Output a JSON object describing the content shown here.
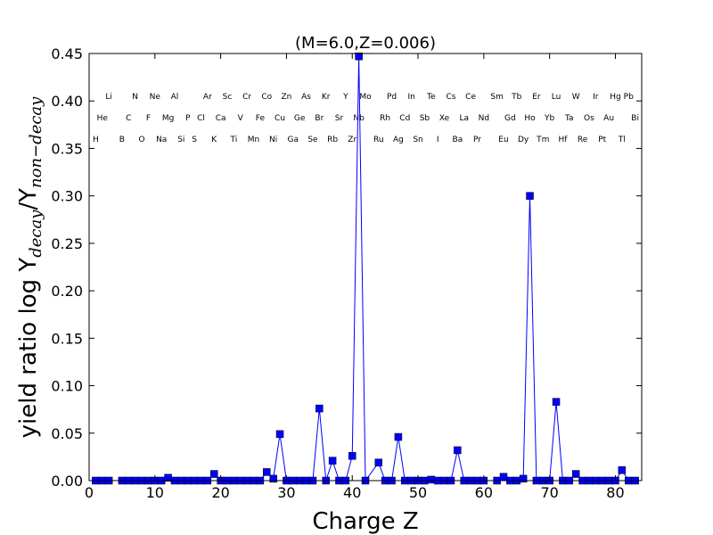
{
  "chart_data": {
    "type": "line",
    "title": "(M=6.0,Z=0.006)",
    "xlabel": "Charge Z",
    "ylabel_main": "yield ratio log Y",
    "ylabel_sub1": "decay",
    "ylabel_sep": "/Y",
    "ylabel_sub2": "non−decay",
    "xlim": [
      0,
      84
    ],
    "ylim": [
      0,
      0.45
    ],
    "xticks": [
      "0",
      "10",
      "20",
      "30",
      "40",
      "50",
      "60",
      "70",
      "80"
    ],
    "yticks": [
      "0.00",
      "0.05",
      "0.10",
      "0.15",
      "0.20",
      "0.25",
      "0.30",
      "0.35",
      "0.40",
      "0.45"
    ],
    "grid": false,
    "series": [
      {
        "color": "#0000ff",
        "marker": "square",
        "x": [
          1,
          2,
          3,
          5,
          6,
          7,
          8,
          9,
          10,
          11,
          12,
          13,
          14,
          15,
          16,
          17,
          18,
          19,
          20,
          21,
          22,
          23,
          24,
          25,
          26,
          27,
          28,
          29,
          30,
          31,
          32,
          33,
          34,
          35,
          36,
          37,
          38,
          39,
          40,
          41,
          42,
          44,
          45,
          46,
          47,
          48,
          49,
          50,
          51,
          52,
          53,
          54,
          55,
          56,
          57,
          58,
          59,
          60,
          62,
          63,
          64,
          65,
          66,
          67,
          68,
          69,
          70,
          71,
          72,
          73,
          74,
          75,
          76,
          77,
          78,
          79,
          80,
          81,
          82,
          83
        ],
        "values": [
          0,
          0,
          0,
          0,
          0,
          0,
          0,
          0,
          0,
          0,
          0.003,
          0,
          0,
          0,
          0,
          0,
          0,
          0.007,
          0,
          0,
          0,
          0,
          0,
          0,
          0,
          0.009,
          0.002,
          0.049,
          0,
          0,
          0,
          0,
          0,
          0.076,
          0,
          0.021,
          0,
          0,
          0.026,
          0.447,
          0,
          0.019,
          0,
          0,
          0.046,
          0,
          0,
          0,
          0,
          0.001,
          0,
          0,
          0,
          0.032,
          0,
          0,
          0,
          0,
          0,
          0.004,
          0,
          0,
          0.002,
          0.3,
          0,
          0,
          0,
          0.083,
          0,
          0,
          0.007,
          0,
          0,
          0,
          0,
          0,
          0,
          0.011,
          0,
          0
        ]
      }
    ],
    "element_rows": [
      {
        "row": 3,
        "labels": [
          [
            "Li",
            3
          ],
          [
            "N",
            7
          ],
          [
            "Ne",
            10
          ],
          [
            "Al",
            13
          ],
          [
            "Ar",
            18
          ],
          [
            "Sc",
            21
          ],
          [
            "Cr",
            24
          ],
          [
            "Co",
            27
          ],
          [
            "Zn",
            30
          ],
          [
            "As",
            33
          ],
          [
            "Kr",
            36
          ],
          [
            "Y",
            39
          ],
          [
            "Mo",
            42
          ],
          [
            "Pd",
            46
          ],
          [
            "In",
            49
          ],
          [
            "Te",
            52
          ],
          [
            "Cs",
            55
          ],
          [
            "Ce",
            58
          ],
          [
            "Sm",
            62
          ],
          [
            "Tb",
            65
          ],
          [
            "Er",
            68
          ],
          [
            "Lu",
            71
          ],
          [
            "W",
            74
          ],
          [
            "Ir",
            77
          ],
          [
            "Hg",
            80
          ],
          [
            "Pb",
            82
          ]
        ]
      },
      {
        "row": 2,
        "labels": [
          [
            "He",
            2
          ],
          [
            "C",
            6
          ],
          [
            "F",
            9
          ],
          [
            "Mg",
            12
          ],
          [
            "P",
            15
          ],
          [
            "Cl",
            17
          ],
          [
            "Ca",
            20
          ],
          [
            "V",
            23
          ],
          [
            "Fe",
            26
          ],
          [
            "Cu",
            29
          ],
          [
            "Ge",
            32
          ],
          [
            "Br",
            35
          ],
          [
            "Sr",
            38
          ],
          [
            "Nb",
            41
          ],
          [
            "Rh",
            45
          ],
          [
            "Cd",
            48
          ],
          [
            "Sb",
            51
          ],
          [
            "Xe",
            54
          ],
          [
            "La",
            57
          ],
          [
            "Nd",
            60
          ],
          [
            "Gd",
            64
          ],
          [
            "Ho",
            67
          ],
          [
            "Yb",
            70
          ],
          [
            "Ta",
            73
          ],
          [
            "Os",
            76
          ],
          [
            "Au",
            79
          ],
          [
            "Bi",
            83
          ]
        ]
      },
      {
        "row": 1,
        "labels": [
          [
            "H",
            1
          ],
          [
            "B",
            5
          ],
          [
            "O",
            8
          ],
          [
            "Na",
            11
          ],
          [
            "Si",
            14
          ],
          [
            "S",
            16
          ],
          [
            "K",
            19
          ],
          [
            "Ti",
            22
          ],
          [
            "Mn",
            25
          ],
          [
            "Ni",
            28
          ],
          [
            "Ga",
            31
          ],
          [
            "Se",
            34
          ],
          [
            "Rb",
            37
          ],
          [
            "Zr",
            40
          ],
          [
            "Ru",
            44
          ],
          [
            "Ag",
            47
          ],
          [
            "Sn",
            50
          ],
          [
            "I",
            53
          ],
          [
            "Ba",
            56
          ],
          [
            "Pr",
            59
          ],
          [
            "Eu",
            63
          ],
          [
            "Dy",
            66
          ],
          [
            "Tm",
            69
          ],
          [
            "Hf",
            72
          ],
          [
            "Re",
            75
          ],
          [
            "Pt",
            78
          ],
          [
            "Tl",
            81
          ]
        ]
      }
    ]
  }
}
